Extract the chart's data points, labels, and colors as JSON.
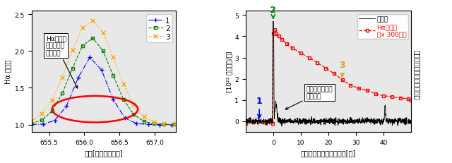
{
  "left_xlim": [
    655.25,
    657.3
  ],
  "left_ylim": [
    0.9,
    2.55
  ],
  "left_xlabel": "波長[ナノメートル]",
  "left_ylabel": "Hα 線強度",
  "right_xlim": [
    -10,
    50
  ],
  "right_ylim": [
    -0.5,
    5.2
  ],
  "right_xlabel": "フレア開始からの時間　[分]",
  "right_ylabel": "[10²³ ジュール/秒]",
  "annotation_left": "Hα線の幅\nや強度が大\nきく変化",
  "annotation_right": "波長毎に時間変\n化が違う",
  "vertical_label": "異なる波長での星の明るさ",
  "bg_color": "#e8e8e8"
}
